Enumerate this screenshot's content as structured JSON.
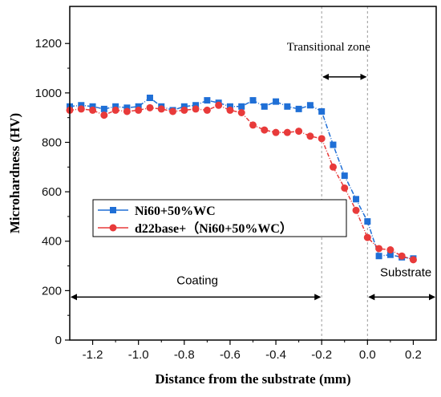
{
  "chart_data": {
    "type": "line",
    "title": "",
    "xlabel": "Distance from the substrate (mm)",
    "ylabel": "Microhardness (HV)",
    "xlim": [
      -1.3,
      0.3
    ],
    "ylim": [
      0,
      1350
    ],
    "xticks": [
      -1.2,
      -1.0,
      -0.8,
      -0.6,
      -0.4,
      -0.2,
      0.0,
      0.2
    ],
    "xtick_labels": [
      "-1.2",
      "-1.0",
      "-0.8",
      "-0.6",
      "-0.4",
      "-0.2",
      "0.0",
      "0.2"
    ],
    "yticks": [
      0,
      200,
      400,
      600,
      800,
      1000,
      1200
    ],
    "ytick_labels": [
      "0",
      "200",
      "400",
      "600",
      "800",
      "1000",
      "1200"
    ],
    "grid": false,
    "legend_position": "center-left",
    "series": [
      {
        "name": "Ni60+50%WC",
        "color": "#1f6fd6",
        "marker": "square",
        "x": [
          -1.3,
          -1.25,
          -1.2,
          -1.15,
          -1.1,
          -1.05,
          -1.0,
          -0.95,
          -0.9,
          -0.85,
          -0.8,
          -0.75,
          -0.7,
          -0.65,
          -0.6,
          -0.55,
          -0.5,
          -0.45,
          -0.4,
          -0.35,
          -0.3,
          -0.25,
          -0.2,
          -0.15,
          -0.1,
          -0.05,
          0.0,
          0.05,
          0.1,
          0.15,
          0.2
        ],
        "y": [
          945,
          950,
          945,
          935,
          945,
          940,
          945,
          980,
          945,
          930,
          945,
          950,
          970,
          960,
          945,
          945,
          970,
          945,
          965,
          945,
          935,
          950,
          925,
          790,
          665,
          570,
          480,
          340,
          345,
          335,
          330
        ]
      },
      {
        "name": "d22base+（Ni60+50%WC）",
        "color": "#e83a3a",
        "marker": "circle",
        "x": [
          -1.3,
          -1.25,
          -1.2,
          -1.15,
          -1.1,
          -1.05,
          -1.0,
          -0.95,
          -0.9,
          -0.85,
          -0.8,
          -0.75,
          -0.7,
          -0.65,
          -0.6,
          -0.55,
          -0.5,
          -0.45,
          -0.4,
          -0.35,
          -0.3,
          -0.25,
          -0.2,
          -0.15,
          -0.1,
          -0.05,
          0.0,
          0.05,
          0.1,
          0.15,
          0.2
        ],
        "y": [
          930,
          935,
          930,
          910,
          930,
          925,
          930,
          940,
          935,
          925,
          930,
          935,
          930,
          950,
          930,
          920,
          870,
          850,
          840,
          840,
          845,
          825,
          815,
          700,
          615,
          525,
          415,
          370,
          365,
          340,
          325
        ]
      }
    ],
    "annotations": [
      {
        "text": "Transitional  zone",
        "span": [
          -0.2,
          0.0
        ],
        "y": 1065
      },
      {
        "text": "Coating",
        "span": [
          -1.3,
          -0.2
        ],
        "y": 200
      },
      {
        "text": "Substrate",
        "span": [
          0.0,
          0.3
        ],
        "y": 200
      }
    ],
    "boundaries": [
      -0.2,
      0.0
    ]
  }
}
